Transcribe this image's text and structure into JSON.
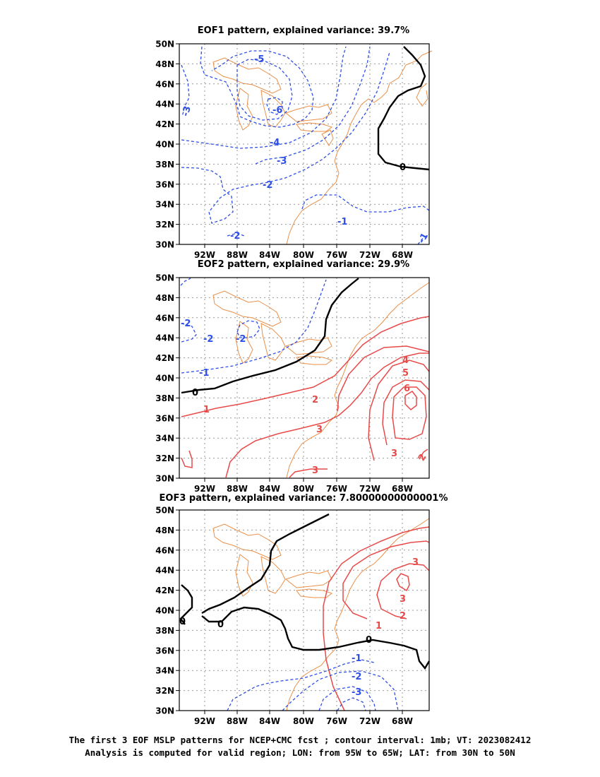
{
  "panels": [
    {
      "title": "EOF1 pattern, explained variance: 39.7%"
    },
    {
      "title": "EOF2 pattern, explained variance: 29.9%"
    },
    {
      "title": "EOF3 pattern, explained variance: 7.80000000000001%"
    }
  ],
  "axes": {
    "lon_labels": [
      "92W",
      "88W",
      "84W",
      "80W",
      "76W",
      "72W",
      "68W"
    ],
    "lat_labels": [
      "50N",
      "48N",
      "46N",
      "44N",
      "42N",
      "40N",
      "38N",
      "36N",
      "34N",
      "32N",
      "30N"
    ]
  },
  "contour_labels": {
    "eof1": [
      "-5",
      "-6",
      "-4",
      "-3",
      "-2",
      "-1",
      "-2",
      "0",
      "-3",
      "-1"
    ],
    "eof2": [
      "-2",
      "-2",
      "-2",
      "-1",
      "0",
      "1",
      "2",
      "3",
      "3",
      "4",
      "5",
      "6",
      "3",
      "2"
    ],
    "eof3": [
      "3",
      "3",
      "2",
      "1",
      "0",
      "0",
      "0",
      "-1",
      "-2",
      "-3"
    ]
  },
  "colors": {
    "negative": "#2f4fe6",
    "positive": "#e84a4a",
    "zero": "#000000",
    "coastline": "#e9904a"
  },
  "caption": {
    "line1": "The first 3 EOF MSLP patterns for NCEP+CMC fcst ; contour interval: 1mb; VT: 2023082412",
    "line2": "Analysis is computed for valid region; LON: from 95W to 65W; LAT: from 30N to 50N"
  }
}
